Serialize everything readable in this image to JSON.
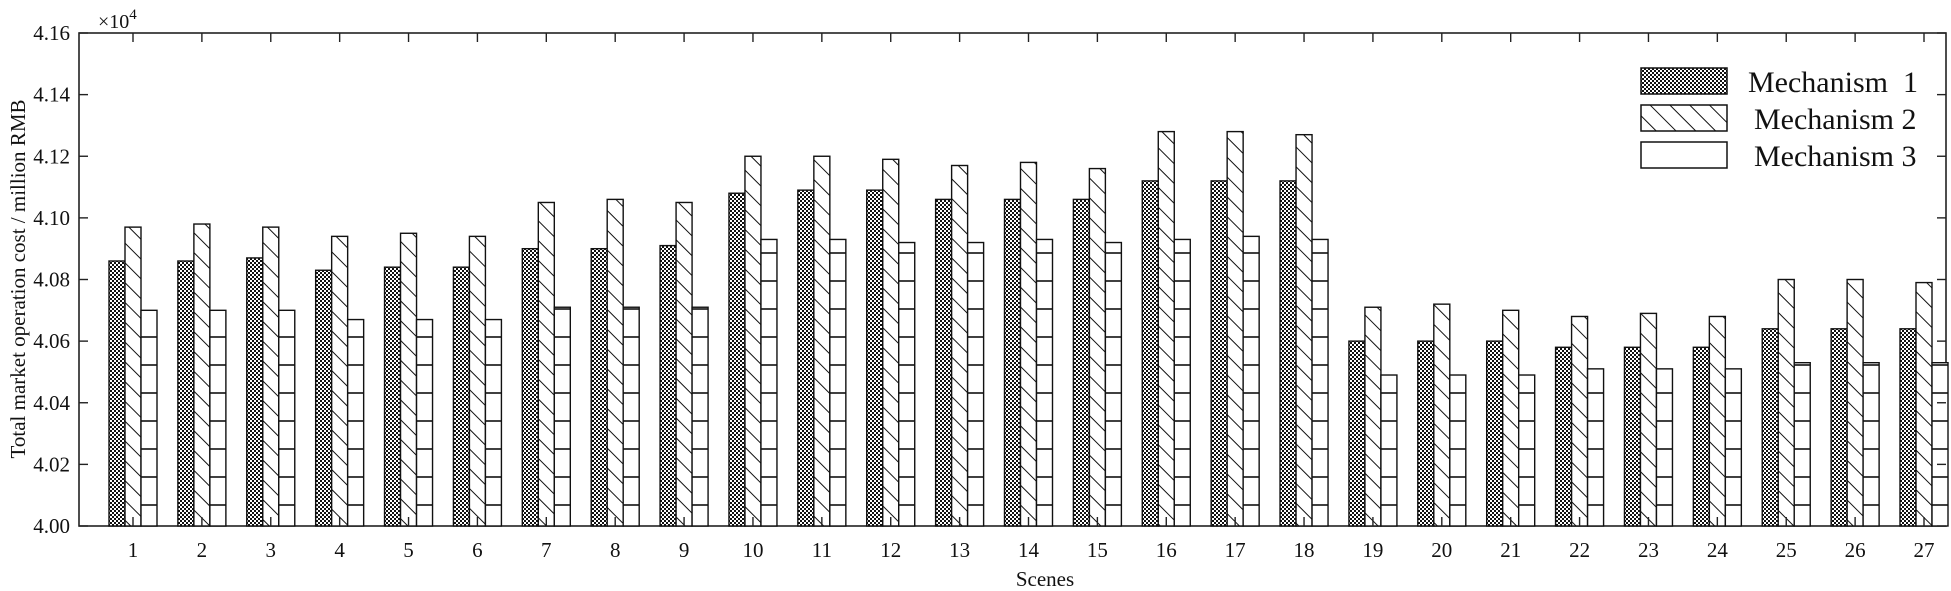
{
  "chart_data": {
    "type": "bar",
    "title": "",
    "xlabel": "Scenes",
    "ylabel": "Total market operation cost / million RMB",
    "y_multiplier": {
      "base": "×10",
      "exponent": "4"
    },
    "ylim": [
      4.0,
      4.16
    ],
    "yticks": [
      "4.00",
      "4.02",
      "4.04",
      "4.06",
      "4.08",
      "4.10",
      "4.12",
      "4.14",
      "4.16"
    ],
    "categories": [
      "1",
      "2",
      "3",
      "4",
      "5",
      "6",
      "7",
      "8",
      "9",
      "10",
      "11",
      "12",
      "13",
      "14",
      "15",
      "16",
      "17",
      "18",
      "19",
      "20",
      "21",
      "22",
      "23",
      "24",
      "25",
      "26",
      "27"
    ],
    "series": [
      {
        "name": "Mechanism  1",
        "pattern": "dots",
        "values": [
          4.086,
          4.086,
          4.087,
          4.083,
          4.084,
          4.084,
          4.09,
          4.09,
          4.091,
          4.108,
          4.109,
          4.109,
          4.106,
          4.106,
          4.106,
          4.112,
          4.112,
          4.112,
          4.06,
          4.06,
          4.06,
          4.058,
          4.058,
          4.058,
          4.064,
          4.064,
          4.064
        ]
      },
      {
        "name": "Mechanism 2",
        "pattern": "hatch",
        "values": [
          4.097,
          4.098,
          4.097,
          4.094,
          4.095,
          4.094,
          4.105,
          4.106,
          4.105,
          4.12,
          4.12,
          4.119,
          4.117,
          4.118,
          4.116,
          4.128,
          4.128,
          4.127,
          4.071,
          4.072,
          4.07,
          4.068,
          4.069,
          4.068,
          4.08,
          4.08,
          4.079
        ]
      },
      {
        "name": "Mechanism 3",
        "pattern": "hlines",
        "values": [
          4.07,
          4.07,
          4.07,
          4.067,
          4.067,
          4.067,
          4.071,
          4.071,
          4.071,
          4.093,
          4.093,
          4.092,
          4.092,
          4.093,
          4.092,
          4.093,
          4.094,
          4.093,
          4.049,
          4.049,
          4.049,
          4.051,
          4.051,
          4.051,
          4.053,
          4.053,
          4.053
        ]
      }
    ],
    "legend": {
      "position": "top-right"
    },
    "grid": false
  }
}
